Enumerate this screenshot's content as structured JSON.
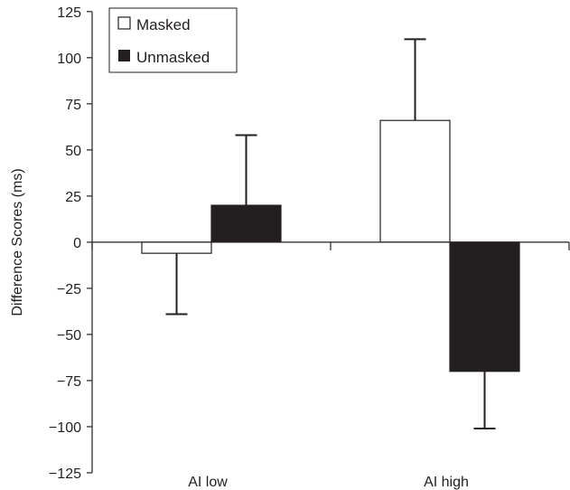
{
  "chart_data": {
    "type": "bar",
    "title": "",
    "xlabel": "",
    "ylabel": "Difference Scores (ms)",
    "ylim": [
      -125,
      125
    ],
    "yticks": [
      "125",
      "100",
      "75",
      "50",
      "25",
      "0",
      "−25",
      "−50",
      "−75",
      "−100",
      "−125"
    ],
    "ytick_values": [
      125,
      100,
      75,
      50,
      25,
      0,
      -25,
      -50,
      -75,
      -100,
      -125
    ],
    "categories": [
      "AI low",
      "AI high"
    ],
    "series": [
      {
        "name": "Masked",
        "color": "#ffffff",
        "values": [
          -6,
          66
        ],
        "error_upper": [
          null,
          110
        ],
        "error_lower": [
          -39,
          null
        ]
      },
      {
        "name": "Unmasked",
        "color": "#231f20",
        "values": [
          20,
          -70
        ],
        "error_upper": [
          58,
          null
        ],
        "error_lower": [
          null,
          -101
        ]
      }
    ],
    "legend": "top-left",
    "grid": false
  }
}
